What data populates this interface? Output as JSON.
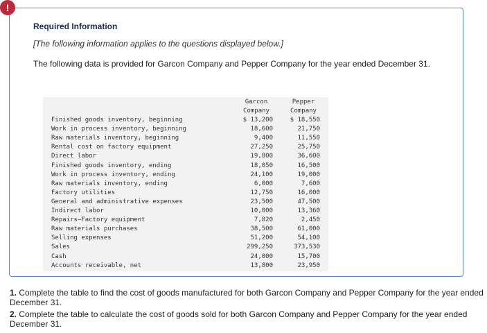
{
  "icon": "!",
  "header": {
    "title": "Required Information",
    "note": "[The following information applies to the questions displayed below.]",
    "intro": "The following data is provided for Garcon Company and Pepper Company for the year ended December 31."
  },
  "table": {
    "columns": [
      "Garcon Company",
      "Pepper Company"
    ],
    "rows": [
      [
        "Finished goods inventory, beginning",
        "$ 13,200",
        "$ 18,550"
      ],
      [
        "Work in process inventory, beginning",
        "18,600",
        "21,750"
      ],
      [
        "Raw materials inventory, beginning",
        "9,400",
        "11,550"
      ],
      [
        "Rental cost on factory equipment",
        "27,250",
        "25,750"
      ],
      [
        "Direct labor",
        "19,800",
        "36,600"
      ],
      [
        "Finished goods inventory, ending",
        "18,050",
        "16,500"
      ],
      [
        "Work in process inventory, ending",
        "24,100",
        "19,000"
      ],
      [
        "Raw materials inventory, ending",
        "6,000",
        "7,600"
      ],
      [
        "Factory utilities",
        "12,750",
        "16,000"
      ],
      [
        "General and administrative expenses",
        "23,500",
        "47,500"
      ],
      [
        "Indirect labor",
        "10,000",
        "13,360"
      ],
      [
        "Repairs—Factory equipment",
        "7,820",
        "2,450"
      ],
      [
        "Raw materials purchases",
        "38,500",
        "61,000"
      ],
      [
        "Selling expenses",
        "51,200",
        "54,100"
      ],
      [
        "Sales",
        "299,250",
        "373,530"
      ],
      [
        "Cash",
        "24,000",
        "15,700"
      ],
      [
        "Accounts receivable, net",
        "13,800",
        "23,950"
      ]
    ]
  },
  "questions": [
    {
      "number": "1.",
      "text": "Complete the table to find the cost of goods manufactured for both Garcon Company and Pepper Company for the year ended December 31."
    },
    {
      "number": "2.",
      "text": "Complete the table to calculate the cost of goods sold for both Garcon Company and Pepper Company for the year ended December 31."
    }
  ]
}
